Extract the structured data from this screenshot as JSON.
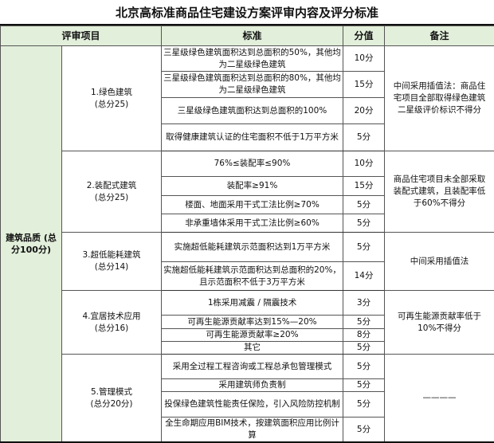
{
  "title": "北京高标准商品住宅建设方案评审内容及评分标准",
  "headers": {
    "item": "评审项目",
    "standard": "标准",
    "score": "分值",
    "note": "备注"
  },
  "category": "建筑品质\n(总分100分)",
  "category_label": "建筑品质 (总分100分)",
  "groups": [
    {
      "name": "1.绿色建筑",
      "total": "(总分25)",
      "note": "中间采用插值法：商品住宅项目全部取得绿色建筑二星级评价标识不得分",
      "rows": [
        {
          "standard": "三星级绿色建筑面积达到总面积的50%，其他均为二星级绿色建筑",
          "score": "10分"
        },
        {
          "standard": "三星级绿色建筑面积达到总面积的80%，其他均为二星级绿色建筑",
          "score": "15分"
        },
        {
          "standard": "三星级绿色建筑面积达到总面积的100%",
          "score": "20分"
        },
        {
          "standard": "取得健康建筑认证的住宅面积不低于1万平方米",
          "score": "5分"
        }
      ]
    },
    {
      "name": "2.装配式建筑",
      "total": "(总分25)",
      "note": "商品住宅项目未全部采取装配式建筑，且装配率低于60%不得分",
      "rows": [
        {
          "standard": "76%≤装配率≤90%",
          "score": "10分"
        },
        {
          "standard": "装配率≥91%",
          "score": "15分"
        },
        {
          "standard": "楼面、地面采用干式工法比例≥70%",
          "score": "5分"
        },
        {
          "standard": "非承重墙体采用干式工法比例≥60%",
          "score": "5分"
        }
      ]
    },
    {
      "name": "3.超低能耗建筑",
      "total": "(总分14)",
      "note": "中间采用插值法",
      "rows": [
        {
          "standard": "实施超低能耗建筑示范面积达到1万平方米",
          "score": "5分"
        },
        {
          "standard": "实施超低能耗建筑示范面积达到总面积的20%，且示范面积不低于3万平方米",
          "score": "14分"
        }
      ]
    },
    {
      "name": "4.宜居技术应用",
      "total": "(总分16)",
      "note": "可再生能源贡献率低于10%不得分",
      "rows": [
        {
          "standard": "1栋采用减震 / 隔震技术",
          "score": "3分"
        },
        {
          "standard": "可再生能源贡献率达到15%—20%",
          "score": "5分"
        },
        {
          "standard": "可再生能源贡献率≥20%",
          "score": "8分"
        },
        {
          "standard": "其它",
          "score": "5分"
        }
      ]
    },
    {
      "name": "5.管理模式",
      "total": "(总分20分)",
      "note": "————",
      "rows": [
        {
          "standard": "采用全过程工程咨询或工程总承包管理模式",
          "score": "5分"
        },
        {
          "standard": "采用建筑师负责制",
          "score": "5分"
        },
        {
          "standard": "投保绿色建筑性能责任保险，引入风险防控机制",
          "score": "5分"
        },
        {
          "standard": "全生命期应用BIM技术，按建筑面积应用比例计算",
          "score": "5分"
        }
      ]
    }
  ]
}
